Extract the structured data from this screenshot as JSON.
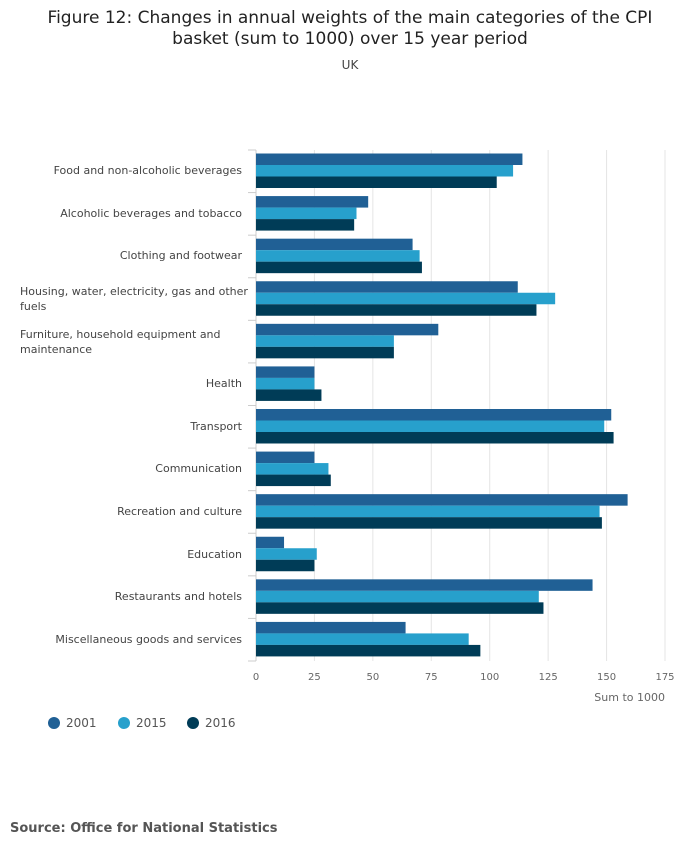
{
  "title": "Figure 12: Changes in annual weights of the main categories of the CPI basket (sum to 1000) over 15 year period",
  "title_line1": "Figure 12: Changes in annual weights of the main categories of the CPI",
  "title_line2": "basket (sum to 1000) over 15 year period",
  "subtitle": "UK",
  "source": "Source: Office for National Statistics",
  "chart_data": {
    "type": "bar",
    "orientation": "horizontal",
    "categories": [
      "Food and non-alcoholic beverages",
      "Alcoholic beverages and tobacco",
      "Clothing and footwear",
      "Housing, water, electricity, gas and other fuels",
      "Furniture, household equipment and maintenance",
      "Health",
      "Transport",
      "Communication",
      "Recreation and culture",
      "Education",
      "Restaurants and hotels",
      "Miscellaneous goods and services"
    ],
    "series": [
      {
        "name": "2001",
        "color": "#206095",
        "values": [
          114,
          48,
          67,
          112,
          78,
          25,
          152,
          25,
          159,
          12,
          144,
          64
        ]
      },
      {
        "name": "2015",
        "color": "#27a0cc",
        "values": [
          110,
          43,
          70,
          128,
          59,
          25,
          149,
          31,
          147,
          26,
          121,
          91
        ]
      },
      {
        "name": "2016",
        "color": "#003c57",
        "values": [
          103,
          42,
          71,
          120,
          59,
          28,
          153,
          32,
          148,
          25,
          123,
          96
        ]
      }
    ],
    "xlabel": "Sum to 1000",
    "ylabel": "",
    "xlim": [
      0,
      175
    ],
    "xticks": [
      0,
      25,
      50,
      75,
      100,
      125,
      150,
      175
    ],
    "grid": true,
    "legend_position": "bottom-left"
  }
}
